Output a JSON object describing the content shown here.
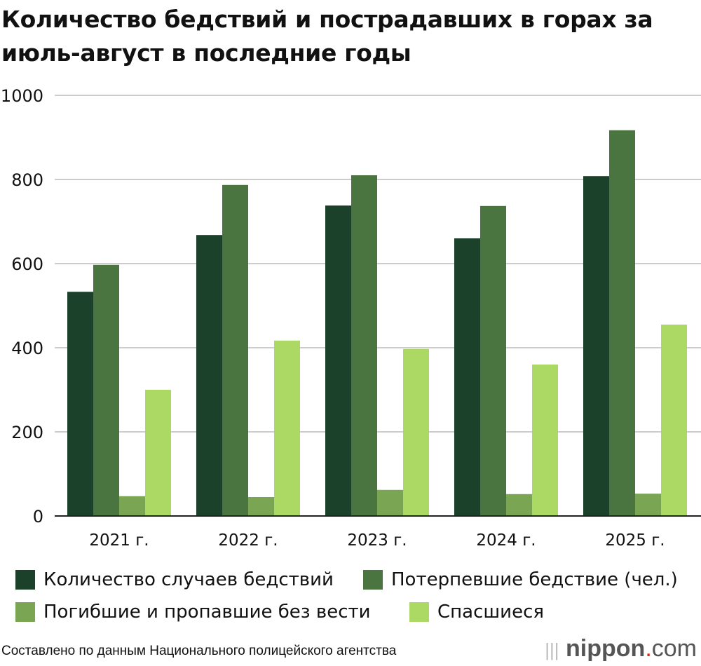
{
  "chart_data": {
    "type": "bar",
    "title": "Количество бедствий и пострадавших в горах за июль-август в последние годы",
    "categories": [
      "2021 г.",
      "2022 г.",
      "2023 г.",
      "2024 г.",
      "2025 г."
    ],
    "series": [
      {
        "name": "Количество случаев бедствий",
        "color": "#1b412b",
        "values": [
          533,
          668,
          738,
          660,
          808
        ]
      },
      {
        "name": "Потерпевшие бедствие (чел.)",
        "color": "#4b7540",
        "values": [
          597,
          787,
          810,
          737,
          917
        ]
      },
      {
        "name": "Погибшие и пропавшие без вести",
        "color": "#7aa552",
        "values": [
          47,
          45,
          62,
          52,
          53
        ]
      },
      {
        "name": "Спасшиеся",
        "color": "#acd864",
        "values": [
          300,
          417,
          397,
          360,
          455
        ]
      }
    ],
    "ylim": [
      0,
      1000
    ],
    "yticks": [
      0,
      200,
      400,
      600,
      800,
      1000
    ],
    "grid": true,
    "legend": "bottom"
  },
  "source": "Составлено по данным Национального полицейского агентства",
  "logo": {
    "text": "nippon",
    "dot": ".",
    "suffix": "com"
  }
}
